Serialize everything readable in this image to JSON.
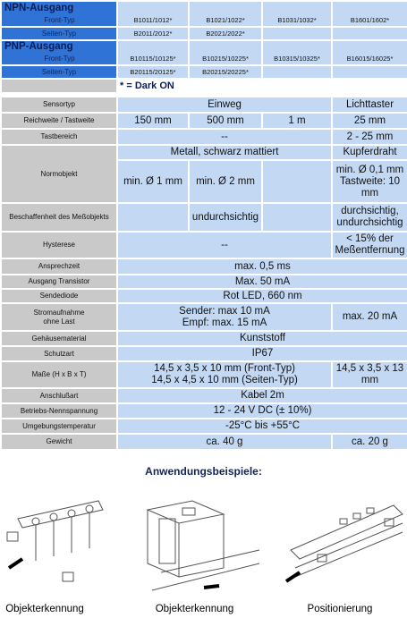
{
  "npn": {
    "title": "NPN-Ausgang",
    "front_label": "Front-Typ",
    "front": [
      "B1011/1012*",
      "B1021/1022*",
      "B1031/1032*",
      "B1601/1602*"
    ],
    "side_label": "Seiten-Typ",
    "side": [
      "B2011/2012*",
      "B2021/2022*"
    ]
  },
  "pnp": {
    "title": "PNP-Ausgang",
    "front_label": "Front-Typ",
    "front": [
      "B10115/10125*",
      "B10215/10225*",
      "B10315/10325*",
      "B16015/16025*"
    ],
    "side_label": "Seiten-Typ",
    "side": [
      "B20115/20125*",
      "B20215/20225*"
    ]
  },
  "note": "* = Dark ON",
  "specs": [
    {
      "label": "Sensortyp",
      "values": [
        "Einweg",
        "Lichttaster"
      ]
    },
    {
      "label": "Reichweite / Tastweite",
      "values": [
        "150 mm",
        "500 mm",
        "1 m",
        "25 mm"
      ]
    },
    {
      "label": "Tastbereich",
      "values": [
        "--",
        "2 - 25 mm"
      ]
    },
    {
      "label": "Normobjekt",
      "values": [
        "Metall, schwarz mattiert",
        "Kupferdraht",
        "min. Ø 1 mm",
        "min. Ø 2 mm",
        "min. Ø 0,1 mm Tastweite: 10 mm"
      ]
    },
    {
      "label": "Beschaffenheit des Meßobjekts",
      "values": [
        "undurchsichtig",
        "durchsichtig, undurchsichtig"
      ]
    },
    {
      "label": "Hysterese",
      "values": [
        "--",
        "< 15% der Meßentfernung"
      ]
    },
    {
      "label": "Ansprechzeit",
      "values": [
        "max. 0,5 ms"
      ]
    },
    {
      "label": "Ausgang Transistor",
      "values": [
        "Max. 50 mA"
      ]
    },
    {
      "label": "Sendediode",
      "values": [
        "Rot LED, 660 nm"
      ]
    },
    {
      "label": "Stromaufnahme ohne Last",
      "values": [
        "Sender: max 10 mA",
        "Empf: max. 15 mA",
        "max. 20 mA"
      ]
    },
    {
      "label": "Gehäusematerial",
      "values": [
        "Kunststoff"
      ]
    },
    {
      "label": "Schutzart",
      "values": [
        "IP67"
      ]
    },
    {
      "label": "Maße (H x B x T)",
      "values": [
        "14,5 x 3,5 x 10 mm (Front-Typ)",
        "14,5 x 4,5 x 10 mm (Seiten-Typ)",
        "14,5 x 3,5 x 13 mm"
      ]
    },
    {
      "label": "Anschlußart",
      "values": [
        "Kabel 2m"
      ]
    },
    {
      "label": "Betriebs-Nennspannung",
      "values": [
        "12 - 24 V DC (± 10%)"
      ]
    },
    {
      "label": "Umgebungstemperatur",
      "values": [
        "-25°C bis +55°C"
      ]
    },
    {
      "label": "Gewicht",
      "values": [
        "ca. 40 g",
        "ca. 20 g"
      ]
    }
  ],
  "examples": {
    "title": "Anwendungsbeispiele:",
    "captions": [
      "Objekterkennung",
      "Objekterkennung",
      "Positionierung"
    ]
  }
}
